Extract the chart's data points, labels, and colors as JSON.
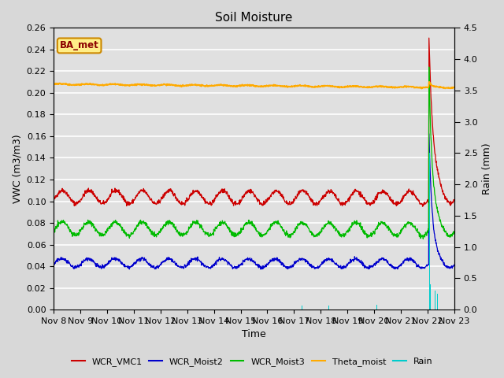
{
  "title": "Soil Moisture",
  "xlabel": "Time",
  "ylabel_left": "VWC (m3/m3)",
  "ylabel_right": "Rain (mm)",
  "ylim_left": [
    0.0,
    0.26
  ],
  "ylim_right": [
    0.0,
    4.5
  ],
  "yticks_left": [
    0.0,
    0.02,
    0.04,
    0.06,
    0.08,
    0.1,
    0.12,
    0.14,
    0.16,
    0.18,
    0.2,
    0.22,
    0.24,
    0.26
  ],
  "yticks_right": [
    0.0,
    0.5,
    1.0,
    1.5,
    2.0,
    2.5,
    3.0,
    3.5,
    4.0,
    4.5
  ],
  "xtick_labels": [
    "Nov 8",
    "Nov 9",
    "Nov 10",
    "Nov 11",
    "Nov 12",
    "Nov 13",
    "Nov 14",
    "Nov 15",
    "Nov 16",
    "Nov 17",
    "Nov 18",
    "Nov 19",
    "Nov 20",
    "Nov 21",
    "Nov 22",
    "Nov 23"
  ],
  "colors": {
    "WCR_VMC1": "#cc0000",
    "WCR_Moist2": "#0000cc",
    "WCR_Moist3": "#00bb00",
    "Theta_moist": "#ffaa00",
    "Rain": "#00cccc"
  },
  "background_color": "#e0e0e0",
  "grid_color": "#ffffff",
  "legend_box_text": "BA_met",
  "n_days": 15,
  "n_points_per_day": 96,
  "WCR_VMC1_base": 0.104,
  "WCR_VMC1_amp": 0.006,
  "WCR_Moist2_base": 0.043,
  "WCR_Moist2_amp": 0.004,
  "WCR_Moist3_base": 0.075,
  "WCR_Moist3_amp": 0.006,
  "Theta_moist_base": 0.208,
  "Theta_moist_slope": -0.003,
  "rain_spike_day": 14.05,
  "rain_spike_value": 4.5,
  "title_fontsize": 11,
  "axis_label_fontsize": 9,
  "tick_fontsize": 8
}
